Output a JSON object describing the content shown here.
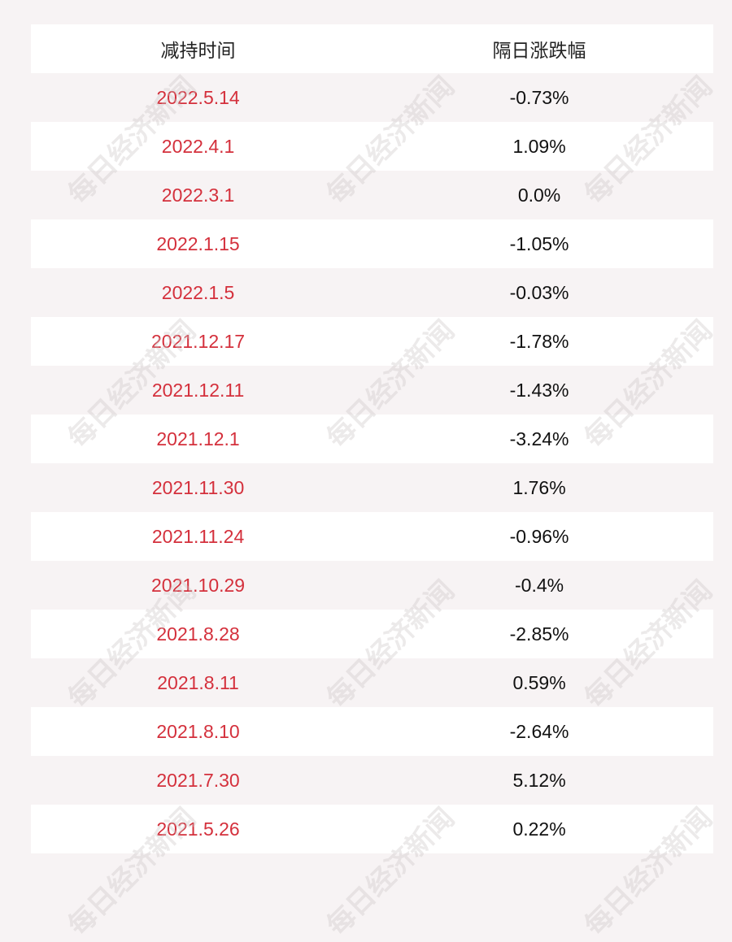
{
  "watermark": "每日经济新闻",
  "table": {
    "header": [
      "减持时间",
      "隔日涨跌幅"
    ],
    "rows": [
      [
        "2022.5.14",
        "-0.73%"
      ],
      [
        "2022.4.1",
        "1.09%"
      ],
      [
        "2022.3.1",
        "0.0%"
      ],
      [
        "2022.1.15",
        "-1.05%"
      ],
      [
        "2022.1.5",
        "-0.03%"
      ],
      [
        "2021.12.17",
        "-1.78%"
      ],
      [
        "2021.12.11",
        "-1.43%"
      ],
      [
        "2021.12.1",
        "-3.24%"
      ],
      [
        "2021.11.30",
        "1.76%"
      ],
      [
        "2021.11.24",
        "-0.96%"
      ],
      [
        "2021.10.29",
        "-0.4%"
      ],
      [
        "2021.8.28",
        "-2.85%"
      ],
      [
        "2021.8.11",
        "0.59%"
      ],
      [
        "2021.8.10",
        "-2.64%"
      ],
      [
        "2021.7.30",
        "5.12%"
      ],
      [
        "2021.5.26",
        "0.22%"
      ]
    ]
  }
}
